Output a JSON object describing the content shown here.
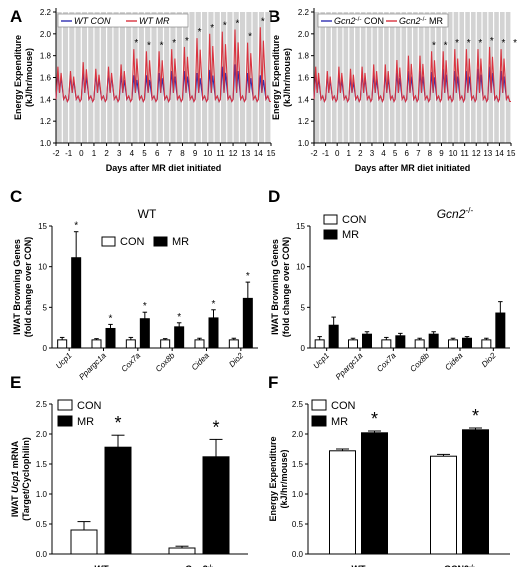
{
  "panels": {
    "A": "A",
    "B": "B",
    "C": "C",
    "D": "D",
    "E": "E",
    "F": "F"
  },
  "chart_data": [
    {
      "id": "A",
      "type": "line",
      "ylabel": "Energy Expenditure (kJ/hr/mouse)",
      "xlabel": "Days after MR diet initiated",
      "x_ticks": [
        "-2",
        "-1",
        "0",
        "1",
        "2",
        "3",
        "4",
        "5",
        "6",
        "7",
        "8",
        "9",
        "10",
        "11",
        "12",
        "13",
        "14",
        "15"
      ],
      "ylim": [
        1.0,
        2.2
      ],
      "y_ticks": [
        "1.0",
        "1.2",
        "1.4",
        "1.6",
        "1.8",
        "2.0",
        "2.2"
      ],
      "legend": [
        "WT CON",
        "WT MR"
      ],
      "series_colors": {
        "CON": "#2f2fb0",
        "MR": "#d9333f"
      },
      "series": [
        {
          "name": "WT CON",
          "day_peaks": [
            1.65,
            1.62,
            1.66,
            1.63,
            1.66,
            1.62,
            1.62,
            1.62,
            1.64,
            1.66,
            1.66,
            1.64,
            1.67,
            1.7,
            1.72,
            1.64,
            1.62
          ],
          "day_troughs": [
            1.38,
            1.38,
            1.38,
            1.38,
            1.38,
            1.38,
            1.38,
            1.38,
            1.38,
            1.38,
            1.38,
            1.38,
            1.38,
            1.38,
            1.38,
            1.38,
            1.38
          ]
        },
        {
          "name": "WT MR",
          "day_peaks": [
            1.7,
            1.66,
            1.74,
            1.68,
            1.7,
            1.72,
            1.86,
            1.84,
            1.84,
            1.86,
            1.88,
            1.96,
            2.0,
            2.02,
            2.04,
            1.92,
            2.06
          ],
          "day_troughs": [
            1.38,
            1.38,
            1.38,
            1.38,
            1.38,
            1.38,
            1.38,
            1.38,
            1.38,
            1.38,
            1.38,
            1.38,
            1.38,
            1.38,
            1.38,
            1.38,
            1.38
          ]
        }
      ],
      "sig_days": [
        "4",
        "5",
        "6",
        "7",
        "8",
        "9",
        "10",
        "11",
        "12",
        "13",
        "14"
      ]
    },
    {
      "id": "B",
      "type": "line",
      "ylabel": "Energy Expenditure (kJ/hr/mouse)",
      "xlabel": "Days after MR diet initiated",
      "x_ticks": [
        "-2",
        "-1",
        "0",
        "1",
        "2",
        "3",
        "4",
        "5",
        "6",
        "7",
        "8",
        "9",
        "10",
        "11",
        "12",
        "13",
        "14",
        "15"
      ],
      "ylim": [
        1.0,
        2.2
      ],
      "y_ticks": [
        "1.0",
        "1.2",
        "1.4",
        "1.6",
        "1.8",
        "2.0",
        "2.2"
      ],
      "legend": [
        "Gcn2-/- CON",
        "Gcn2-/- MR"
      ],
      "series_colors": {
        "CON": "#2f2fb0",
        "MR": "#d9333f"
      },
      "series": [
        {
          "name": "Gcn2-/- CON",
          "day_peaks": [
            1.64,
            1.62,
            1.62,
            1.6,
            1.64,
            1.63,
            1.64,
            1.64,
            1.66,
            1.66,
            1.65,
            1.68,
            1.66,
            1.66,
            1.68,
            1.7,
            1.66
          ],
          "day_troughs": [
            1.38,
            1.38,
            1.38,
            1.38,
            1.38,
            1.38,
            1.38,
            1.38,
            1.38,
            1.38,
            1.38,
            1.38,
            1.38,
            1.38,
            1.38,
            1.38,
            1.38
          ]
        },
        {
          "name": "Gcn2-/- MR",
          "day_peaks": [
            1.7,
            1.66,
            1.7,
            1.68,
            1.7,
            1.72,
            1.72,
            1.76,
            1.8,
            1.8,
            1.84,
            1.84,
            1.86,
            1.86,
            1.86,
            1.88,
            1.86
          ],
          "day_troughs": [
            1.38,
            1.38,
            1.38,
            1.38,
            1.38,
            1.38,
            1.38,
            1.38,
            1.38,
            1.38,
            1.38,
            1.38,
            1.38,
            1.38,
            1.38,
            1.38,
            1.38
          ]
        }
      ],
      "sig_days": [
        "8",
        "9",
        "10",
        "11",
        "12",
        "13",
        "14",
        "15"
      ]
    },
    {
      "id": "C",
      "type": "bar",
      "title": "WT",
      "ylabel": "IWAT Browning Genes (fold change over CON)",
      "categories": [
        "Ucp1",
        "Ppargc1a",
        "Cox7a",
        "Cox8b",
        "Cidea",
        "Dio2"
      ],
      "ylim": [
        0,
        15
      ],
      "y_ticks": [
        "0",
        "5",
        "10",
        "15"
      ],
      "series": [
        {
          "name": "CON",
          "values": [
            1.0,
            1.0,
            1.0,
            1.0,
            1.0,
            1.0
          ],
          "errors": [
            0.3,
            0.15,
            0.3,
            0.15,
            0.2,
            0.2
          ]
        },
        {
          "name": "MR",
          "values": [
            11.1,
            2.4,
            3.6,
            2.6,
            3.7,
            6.1
          ],
          "errors": [
            3.2,
            0.5,
            0.8,
            0.5,
            1.0,
            2.0
          ]
        }
      ],
      "sig": [
        "*",
        "*",
        "*",
        "*",
        "*",
        "*"
      ]
    },
    {
      "id": "D",
      "type": "bar",
      "title": "Gcn2-/-",
      "ylabel": "IWAT Browning Genes (fold change over CON)",
      "categories": [
        "Ucp1",
        "Ppargc1a",
        "Cox7a",
        "Cox8b",
        "Cidea",
        "Dio2"
      ],
      "ylim": [
        0,
        15
      ],
      "y_ticks": [
        "0",
        "5",
        "10",
        "15"
      ],
      "series": [
        {
          "name": "CON",
          "values": [
            1.0,
            1.0,
            1.0,
            1.0,
            1.0,
            1.0
          ],
          "errors": [
            0.4,
            0.2,
            0.3,
            0.2,
            0.2,
            0.2
          ]
        },
        {
          "name": "MR",
          "values": [
            2.8,
            1.7,
            1.5,
            1.7,
            1.2,
            4.3
          ],
          "errors": [
            1.0,
            0.3,
            0.3,
            0.3,
            0.2,
            1.4
          ]
        }
      ],
      "sig": []
    },
    {
      "id": "E",
      "type": "bar",
      "ylabel": "IWAT Ucp1 mRNA (Target/Cyclophilin)",
      "categories": [
        "WT",
        "Gcn2-/-"
      ],
      "ylim": [
        0,
        2.5
      ],
      "y_ticks": [
        "0.0",
        "0.5",
        "1.0",
        "1.5",
        "2.0",
        "2.5"
      ],
      "series": [
        {
          "name": "CON",
          "values": [
            0.4,
            0.1
          ],
          "errors": [
            0.14,
            0.03
          ]
        },
        {
          "name": "MR",
          "values": [
            1.78,
            1.62
          ],
          "errors": [
            0.2,
            0.29
          ]
        }
      ],
      "sig": [
        "*",
        "*"
      ]
    },
    {
      "id": "F",
      "type": "bar",
      "ylabel": "Energy Expenditure (kJ/hr/mouse)",
      "categories": [
        "WT",
        "GCN2-/-"
      ],
      "ylim": [
        0,
        2.5
      ],
      "y_ticks": [
        "0.0",
        "0.5",
        "1.0",
        "1.5",
        "2.0",
        "2.5"
      ],
      "series": [
        {
          "name": "CON",
          "values": [
            1.72,
            1.63
          ],
          "errors": [
            0.03,
            0.03
          ]
        },
        {
          "name": "MR",
          "values": [
            2.02,
            2.07
          ],
          "errors": [
            0.03,
            0.03
          ]
        }
      ],
      "sig": [
        "*",
        "*"
      ]
    }
  ]
}
